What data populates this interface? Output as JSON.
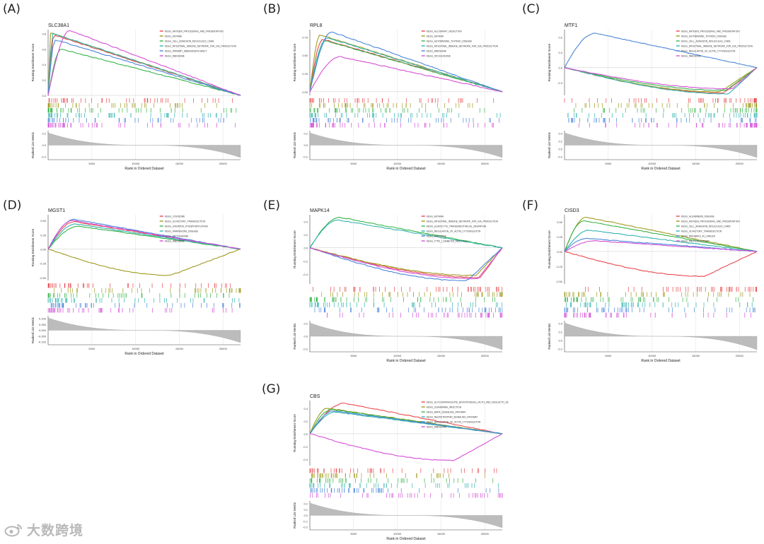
{
  "figure": {
    "watermark_text": "大数跨境",
    "watermark_icon": "weibo-icon",
    "line_colors": [
      "#e8474c",
      "#9e9a1f",
      "#37b449",
      "#33b3b0",
      "#4a86d8",
      "#d44fd6"
    ],
    "ranked_fill": "#bcbcbc"
  },
  "chart_data": [
    {
      "type": "line",
      "panel_label": "(A)",
      "title": "SLC38A1",
      "ylabel": "Running Enrichment Score",
      "ylabel2": "Ranked List Metric",
      "xlabel": "Rank in Ordered Dataset",
      "xticks": [
        "5000",
        "10000",
        "15000",
        "20000"
      ],
      "es_ticks": [
        "0.8",
        "0.6",
        "0.4",
        "0.2",
        "0.0"
      ],
      "rm_ticks": [
        "0.2",
        "0.0",
        "-0.2"
      ],
      "ylim": [
        0.0,
        0.85
      ],
      "series": [
        {
          "name": "KEGG_ANTIGEN_PROCESSING_AND_PRESENTATION",
          "peak_rank": 700,
          "peak_es": 0.78,
          "end_es": 0.0
        },
        {
          "name": "KEGG_ASTHMA",
          "peak_rank": 300,
          "peak_es": 0.81,
          "end_es": 0.0
        },
        {
          "name": "KEGG_CELL_ADHESION_MOLECULES_CAMS",
          "peak_rank": 1500,
          "peak_es": 0.6,
          "end_es": 0.0
        },
        {
          "name": "KEGG_INTESTINAL_IMMUNE_NETWORK_FOR_IGA_PRODUCTION",
          "peak_rank": 600,
          "peak_es": 0.8,
          "end_es": 0.0
        },
        {
          "name": "KEGG_PRIMARY_IMMUNODEFICIENCY",
          "peak_rank": 800,
          "peak_es": 0.72,
          "end_es": 0.0
        },
        {
          "name": "KEGG_RIBOSOME",
          "peak_rank": 2500,
          "peak_es": 0.84,
          "end_es": 0.0
        }
      ]
    },
    {
      "type": "line",
      "panel_label": "(B)",
      "title": "RPL8",
      "ylabel": "Running Enrichment Score",
      "ylabel2": "Ranked List Metric",
      "xlabel": "Rank in Ordered Dataset",
      "xticks": [
        "5000",
        "10000",
        "15000",
        "20000"
      ],
      "es_ticks": [
        "0.75",
        "0.50",
        "0.25",
        "0.00"
      ],
      "rm_ticks": [
        "0.2",
        "0.0",
        "-0.2"
      ],
      "ylim": [
        -0.05,
        0.85
      ],
      "series": [
        {
          "name": "KEGG_ALLOGRAFT_REJECTION",
          "peak_rank": 1500,
          "peak_es": 0.72,
          "end_es": 0.0
        },
        {
          "name": "KEGG_ASTHMA",
          "peak_rank": 1200,
          "peak_es": 0.78,
          "end_es": 0.0
        },
        {
          "name": "KEGG_AUTOIMMUNE_THYROID_DISEASE",
          "peak_rank": 1800,
          "peak_es": 0.7,
          "end_es": 0.0
        },
        {
          "name": "KEGG_INTESTINAL_IMMUNE_NETWORK_FOR_IGA_PRODUCTION",
          "peak_rank": 2000,
          "peak_es": 0.74,
          "end_es": 0.0
        },
        {
          "name": "KEGG_RIBOSOME",
          "peak_rank": 2500,
          "peak_es": 0.82,
          "end_es": 0.0
        },
        {
          "name": "KEGG_SPLICEOSOME",
          "peak_rank": 3500,
          "peak_es": 0.48,
          "end_es": 0.0
        }
      ]
    },
    {
      "type": "line",
      "panel_label": "(C)",
      "title": "MTF1",
      "ylabel": "Running Enrichment Score",
      "ylabel2": "Ranked List Metric",
      "xlabel": "Rank in Ordered Dataset",
      "xticks": [
        "5000",
        "10000",
        "15000",
        "20000"
      ],
      "es_ticks": [
        "0.6",
        "0.3",
        "0.0",
        "-0.3"
      ],
      "rm_ticks": [
        "0.4",
        "0.2",
        "0.0",
        "-0.2"
      ],
      "ylim": [
        -0.55,
        0.75
      ],
      "series": [
        {
          "name": "KEGG_ANTIGEN_PROCESSING_AND_PRESENTATION",
          "peak_rank": 18200,
          "peak_es": -0.5,
          "end_es": 0.0
        },
        {
          "name": "KEGG_AUTOIMMUNE_THYROID_DISEASE",
          "peak_rank": 17800,
          "peak_es": -0.48,
          "end_es": 0.0
        },
        {
          "name": "KEGG_CELL_ADHESION_MOLECULES_CAMS",
          "peak_rank": 18500,
          "peak_es": -0.45,
          "end_es": 0.0
        },
        {
          "name": "KEGG_INTESTINAL_IMMUNE_NETWORK_FOR_IGA_PRODUCTION",
          "peak_rank": 18800,
          "peak_es": -0.52,
          "end_es": 0.0
        },
        {
          "name": "KEGG_REGULATION_OF_ACTIN_CYTOSKELETON",
          "peak_rank": 3500,
          "peak_es": 0.68,
          "end_es": 0.0
        },
        {
          "name": "KEGG_RIBOSOME",
          "peak_rank": 19200,
          "peak_es": -0.42,
          "end_es": 0.0
        }
      ]
    },
    {
      "type": "line",
      "panel_label": "(D)",
      "title": "MGST1",
      "ylabel": "Running Enrichment Score",
      "ylabel2": "Ranked List Metric",
      "xlabel": "Rank in Ordered Dataset",
      "xticks": [
        "5000",
        "10000",
        "15000",
        "20000"
      ],
      "es_ticks": [
        "0.50",
        "0.25",
        "0.00",
        "-0.25",
        "-0.50"
      ],
      "rm_ticks": [
        "0.100",
        "0.050",
        "0.000",
        "-0.050",
        "-0.100"
      ],
      "ylim": [
        -0.55,
        0.6
      ],
      "series": [
        {
          "name": "KEGG_LYSOSOME",
          "peak_rank": 3000,
          "peak_es": 0.48,
          "end_es": 0.0
        },
        {
          "name": "KEGG_OLFACTORY_TRANSDUCTION",
          "peak_rank": 14000,
          "peak_es": -0.46,
          "end_es": 0.0
        },
        {
          "name": "KEGG_OXIDATIVE_PHOSPHORYLATION",
          "peak_rank": 3500,
          "peak_es": 0.4,
          "end_es": 0.0
        },
        {
          "name": "KEGG_PARKINSONS_DISEASE",
          "peak_rank": 3200,
          "peak_es": 0.44,
          "end_es": 0.0
        },
        {
          "name": "KEGG_PROTEASOME",
          "peak_rank": 3000,
          "peak_es": 0.52,
          "end_es": 0.0
        },
        {
          "name": "KEGG_RIBOSOME",
          "peak_rank": 2800,
          "peak_es": 0.5,
          "end_es": 0.0
        }
      ]
    },
    {
      "type": "line",
      "panel_label": "(E)",
      "title": "MAPK14",
      "ylabel": "Running Enrichment Score",
      "ylabel2": "Ranked List Metric",
      "xlabel": "Rank in Ordered Dataset",
      "xticks": [
        "5000",
        "10000",
        "15000",
        "20000"
      ],
      "es_ticks": [
        "0.4",
        "0.2",
        "0.0",
        "-0.2",
        "-0.4"
      ],
      "rm_ticks": [
        "0.2",
        "0.0",
        "-0.2"
      ],
      "ylim": [
        -0.55,
        0.5
      ],
      "series": [
        {
          "name": "KEGG_ASTHMA",
          "peak_rank": 19500,
          "peak_es": -0.45,
          "end_es": 0.0
        },
        {
          "name": "KEGG_INTESTINAL_IMMUNE_NETWORK_FOR_IGA_PRODUCTION",
          "peak_rank": 19000,
          "peak_es": -0.42,
          "end_es": 0.0
        },
        {
          "name": "KEGG_LEUKOCYTE_TRANSENDOTHELIAL_MIGRATION",
          "peak_rank": 3500,
          "peak_es": 0.46,
          "end_es": 0.0
        },
        {
          "name": "KEGG_REGULATION_OF_ACTIN_CYTOSKELETON",
          "peak_rank": 3300,
          "peak_es": 0.42,
          "end_es": 0.0
        },
        {
          "name": "KEGG_RIBOSOME",
          "peak_rank": 18000,
          "peak_es": -0.5,
          "end_es": 0.0
        },
        {
          "name": "KEGG_TYPE_I_DIABETES_MELLITUS",
          "peak_rank": 19200,
          "peak_es": -0.47,
          "end_es": 0.0
        }
      ]
    },
    {
      "type": "line",
      "panel_label": "(F)",
      "title": "CISD3",
      "ylabel": "Running Enrichment Score",
      "ylabel2": "Ranked List Metric",
      "xlabel": "Rank in Ordered Dataset",
      "xticks": [
        "5000",
        "10000",
        "15000",
        "20000"
      ],
      "es_ticks": [
        "0.50",
        "0.25",
        "0.00",
        "-0.25",
        "-0.50"
      ],
      "rm_ticks": [
        "0.4",
        "0.2",
        "0.0",
        "-0.2"
      ],
      "ylim": [
        -0.55,
        0.62
      ],
      "series": [
        {
          "name": "KEGG_ALZHEIMERS_DISEASE",
          "peak_rank": 16000,
          "peak_es": -0.42,
          "end_es": 0.0
        },
        {
          "name": "KEGG_ANTIGEN_PROCESSING_AND_PRESENTATION",
          "peak_rank": 2500,
          "peak_es": 0.58,
          "end_es": 0.0
        },
        {
          "name": "KEGG_CELL_ADHESION_MOLECULES_CAMS",
          "peak_rank": 2200,
          "peak_es": 0.52,
          "end_es": 0.0
        },
        {
          "name": "KEGG_OLFACTORY_TRANSDUCTION",
          "peak_rank": 2800,
          "peak_es": 0.36,
          "end_es": 0.0
        },
        {
          "name": "KEGG_PATHWAYS_IN_CANCER",
          "peak_rank": 2500,
          "peak_es": 0.22,
          "end_es": 0.0
        },
        {
          "name": "KEGG_PROTEIN_EXPORT",
          "peak_rank": 3500,
          "peak_es": 0.18,
          "end_es": 0.0
        }
      ]
    },
    {
      "type": "line",
      "panel_label": "(G)",
      "title": "CBS",
      "ylabel": "Running Enrichment Score",
      "ylabel2": "Ranked List Metric",
      "xlabel": "Rank in Ordered Dataset",
      "xticks": [
        "5000",
        "10000",
        "15000",
        "20000"
      ],
      "es_ticks": [
        "0.4",
        "0.2",
        "0.0",
        "-0.2",
        "-0.4"
      ],
      "rm_ticks": [
        "0.2",
        "0.1",
        "0.0",
        "-0.1",
        "-0.2"
      ],
      "ylim": [
        -0.5,
        0.52
      ],
      "series": [
        {
          "name": "KEGG_GLYCOSPHINGOLIPID_BIOSYNTHESIS_LACTO_AND_NEOLACTO_SE",
          "peak_rank": 4000,
          "peak_es": 0.48,
          "end_es": 0.0
        },
        {
          "name": "KEGG_LEISHMANIA_INFECTION",
          "peak_rank": 2000,
          "peak_es": 0.4,
          "end_es": 0.0
        },
        {
          "name": "KEGG_MAPK_SIGNALING_PATHWAY",
          "peak_rank": 2500,
          "peak_es": 0.38,
          "end_es": 0.0
        },
        {
          "name": "KEGG_NEUROTROPHIN_SIGNALING_PATHWAY",
          "peak_rank": 3000,
          "peak_es": 0.34,
          "end_es": 0.0
        },
        {
          "name": "KEGG_REGULATION_OF_ACTIN_CYTOSKELETON",
          "peak_rank": 2800,
          "peak_es": 0.36,
          "end_es": 0.0
        },
        {
          "name": "KEGG_RIBOSOME",
          "peak_rank": 16500,
          "peak_es": -0.42,
          "end_es": 0.0
        }
      ]
    }
  ]
}
